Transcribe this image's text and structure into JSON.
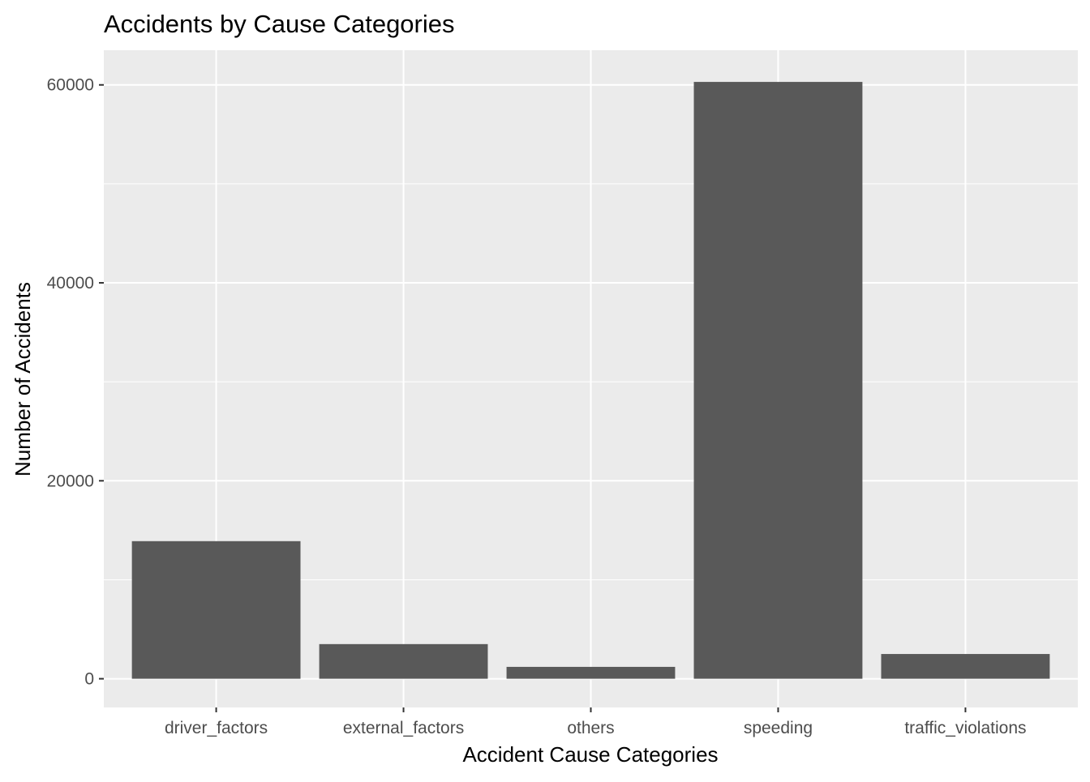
{
  "chart_data": {
    "type": "bar",
    "title": "Accidents by Cause Categories",
    "xlabel": "Accident Cause Categories",
    "ylabel": "Number of Accidents",
    "categories": [
      "driver_factors",
      "external_factors",
      "others",
      "speeding",
      "traffic_violations"
    ],
    "values": [
      13900,
      3500,
      1200,
      60300,
      2500
    ],
    "ylim": [
      -2900,
      63500
    ],
    "yticks": [
      0,
      20000,
      40000,
      60000
    ],
    "yticks_labels": [
      "0",
      "20000",
      "40000",
      "60000"
    ],
    "grid": true,
    "legend": "none"
  },
  "colors": {
    "panel_background": "#ebebeb",
    "grid": "#ffffff",
    "bar_fill": "#595959",
    "tick_mark": "#333333",
    "tick_label": "#4d4d4d",
    "text": "#000000"
  }
}
